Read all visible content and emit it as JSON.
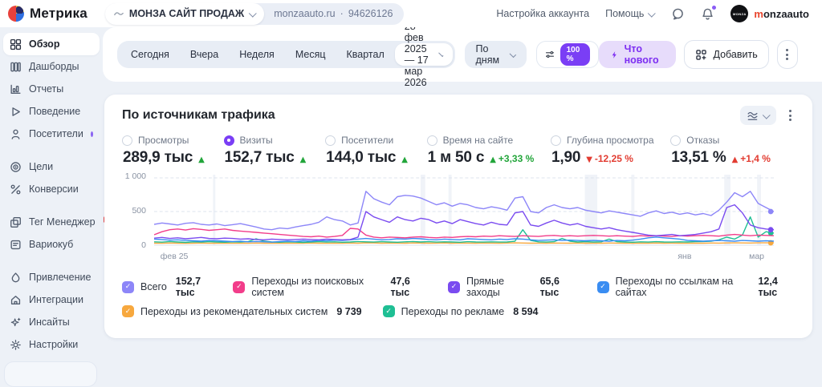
{
  "header": {
    "brand": "Метрика",
    "counter": {
      "name": "МОНЗА САЙТ ПРОДАЖ",
      "domain": "monzaauto.ru",
      "separator": "·",
      "id": "94626126"
    },
    "nav": {
      "account_settings": "Настройка аккаунта",
      "help": "Помощь"
    },
    "user": {
      "avatar_text": "MONZA",
      "name_first": "m",
      "name_rest": "onzaauto"
    }
  },
  "sidebar": {
    "groups": [
      {
        "items": [
          {
            "label": "Обзор",
            "icon": "overview-grid-icon",
            "active": true
          },
          {
            "label": "Дашборды",
            "icon": "dashboards-icon"
          },
          {
            "label": "Отчеты",
            "icon": "reports-icon"
          },
          {
            "label": "Поведение",
            "icon": "behavior-icon"
          },
          {
            "label": "Посетители",
            "icon": "visitors-icon",
            "dot": true
          }
        ]
      },
      {
        "items": [
          {
            "label": "Цели",
            "icon": "goals-icon"
          },
          {
            "label": "Конверсии",
            "icon": "conversions-icon"
          }
        ]
      },
      {
        "items": [
          {
            "label": "Тег Менеджер",
            "icon": "tag-manager-icon",
            "badge": "β"
          },
          {
            "label": "Вариокуб",
            "icon": "variocube-icon"
          }
        ]
      },
      {
        "items": [
          {
            "label": "Привлечение",
            "icon": "acquisition-icon"
          },
          {
            "label": "Интеграции",
            "icon": "integrations-icon"
          },
          {
            "label": "Инсайты",
            "icon": "insights-icon"
          },
          {
            "label": "Настройки",
            "icon": "settings-icon"
          }
        ]
      }
    ]
  },
  "toolbar": {
    "periods": [
      "Сегодня",
      "Вчера",
      "Неделя",
      "Месяц",
      "Квартал"
    ],
    "date_range": "28 фев 2025 — 17 мар 2026",
    "group_by": "По дням",
    "sample": "100 %",
    "whats_new_label": "Что нового",
    "add_label": "Добавить"
  },
  "card": {
    "title": "По источникам трафика"
  },
  "metrics": [
    {
      "label": "Просмотры",
      "value": "289,9 тыс",
      "delta": "",
      "trend": "up-good",
      "selected": false
    },
    {
      "label": "Визиты",
      "value": "152,7 тыс",
      "delta": "",
      "trend": "up-good",
      "selected": true
    },
    {
      "label": "Посетители",
      "value": "144,0 тыс",
      "delta": "",
      "trend": "up-good",
      "selected": false
    },
    {
      "label": "Время на сайте",
      "value": "1 м 50 с",
      "delta": "+3,33 %",
      "trend": "up-good",
      "selected": false
    },
    {
      "label": "Глубина просмотра",
      "value": "1,90",
      "delta": "-12,25 %",
      "trend": "down-bad",
      "selected": false
    },
    {
      "label": "Отказы",
      "value": "13,51 %",
      "delta": "+1,4 %",
      "trend": "up-bad",
      "selected": false
    }
  ],
  "legend": [
    [
      {
        "label": "Всего",
        "value": "152,7 тыс",
        "color": "#8d86f8"
      },
      {
        "label": "Переходы из поисковых систем",
        "value": "47,6 тыс",
        "color": "#f23d8a"
      },
      {
        "label": "Прямые заходы",
        "value": "65,6 тыс",
        "color": "#7a4bf0"
      },
      {
        "label": "Переходы по ссылкам на сайтах",
        "value": "12,4 тыс",
        "color": "#3a8df2"
      }
    ],
    [
      {
        "label": "Переходы из рекомендательных систем",
        "value": "9 739",
        "color": "#f7a83e"
      },
      {
        "label": "Переходы по рекламе",
        "value": "8 594",
        "color": "#1fbf94"
      }
    ]
  ],
  "chart_data": {
    "type": "line",
    "title": "По источникам трафика",
    "xlabel": "",
    "ylabel": "",
    "ylim": [
      0,
      1000
    ],
    "grid": true,
    "y_ticks": [
      "1 000",
      "500",
      "0"
    ],
    "x_ticks": [
      {
        "label": "фев 25",
        "pos": 1
      },
      {
        "label": "янв",
        "pos": 84.5
      },
      {
        "label": "мар",
        "pos": 96
      }
    ],
    "series": [
      {
        "name": "Всего",
        "color": "#8d86f8",
        "end_dot": true,
        "values": [
          310,
          330,
          315,
          300,
          325,
          335,
          310,
          300,
          315,
          290,
          305,
          320,
          295,
          270,
          240,
          230,
          255,
          245,
          270,
          290,
          310,
          340,
          420,
          380,
          360,
          300,
          330,
          800,
          690,
          640,
          600,
          720,
          740,
          730,
          700,
          650,
          600,
          630,
          580,
          620,
          600,
          560,
          540,
          570,
          550,
          520,
          700,
          720,
          500,
          480,
          560,
          600,
          560,
          540,
          560,
          520,
          500,
          480,
          510,
          490,
          470,
          450,
          430,
          480,
          510,
          470,
          490,
          460,
          480,
          450,
          470,
          440,
          520,
          640,
          780,
          720,
          800,
          620,
          560,
          500
        ]
      },
      {
        "name": "Переходы из поисковых систем",
        "color": "#f23d8a",
        "end_dot": false,
        "values": [
          155,
          200,
          230,
          240,
          225,
          245,
          235,
          220,
          230,
          240,
          220,
          210,
          200,
          190,
          180,
          170,
          160,
          150,
          140,
          130,
          125,
          135,
          120,
          130,
          145,
          250,
          240,
          150,
          120,
          110,
          120,
          115,
          110,
          120,
          125,
          115,
          110,
          120,
          115,
          125,
          130,
          125,
          135,
          130,
          140,
          135,
          130,
          140,
          135,
          130,
          140,
          145,
          135,
          140,
          135,
          140,
          145,
          140,
          135,
          140,
          135,
          130,
          140,
          135,
          140,
          135,
          130,
          140,
          135,
          140,
          145,
          140,
          135,
          150,
          160,
          150,
          140,
          150,
          145,
          140
        ]
      },
      {
        "name": "Прямые заходы",
        "color": "#7a4bf0",
        "end_dot": true,
        "values": [
          105,
          115,
          100,
          110,
          95,
          105,
          115,
          100,
          95,
          105,
          100,
          90,
          95,
          85,
          80,
          90,
          85,
          80,
          85,
          90,
          85,
          80,
          90,
          85,
          80,
          85,
          120,
          500,
          420,
          380,
          340,
          420,
          380,
          360,
          400,
          380,
          330,
          360,
          320,
          380,
          350,
          320,
          300,
          340,
          310,
          300,
          480,
          500,
          300,
          280,
          330,
          370,
          330,
          300,
          320,
          280,
          260,
          240,
          260,
          230,
          210,
          190,
          170,
          150,
          140,
          150,
          160,
          140,
          150,
          160,
          180,
          200,
          240,
          560,
          600,
          480,
          300,
          260,
          240,
          230
        ]
      },
      {
        "name": "Переходы по ссылкам на сайтах",
        "color": "#3a8df2",
        "end_dot": false,
        "values": [
          90,
          85,
          75,
          80,
          70,
          65,
          60,
          70,
          65,
          60,
          55,
          60,
          50,
          55,
          50,
          45,
          55,
          60,
          55,
          65,
          60,
          70,
          65,
          75,
          70,
          80,
          90,
          100,
          90,
          80,
          85,
          95,
          90,
          100,
          95,
          85,
          80,
          90,
          85,
          80,
          95,
          90,
          85,
          80,
          90,
          85,
          95,
          90,
          80,
          70,
          75,
          80,
          70,
          75,
          70,
          65,
          70,
          65,
          60,
          70,
          65,
          75,
          90,
          110,
          120,
          110,
          100,
          90,
          70,
          65,
          60,
          65,
          70,
          65,
          60,
          70,
          65,
          60,
          65,
          60
        ]
      },
      {
        "name": "Переходы из рекомендательных систем",
        "color": "#f7a83e",
        "end_dot": true,
        "values": [
          30,
          28,
          32,
          30,
          27,
          30,
          32,
          28,
          30,
          31,
          29,
          30,
          28,
          32,
          30,
          29,
          31,
          30,
          28,
          30,
          32,
          30,
          29,
          31,
          30,
          32,
          30,
          35,
          33,
          30,
          32,
          31,
          30,
          33,
          32,
          30,
          31,
          33,
          30,
          32,
          31,
          30,
          32,
          31,
          30,
          32,
          34,
          32,
          30,
          31,
          30,
          32,
          31,
          30,
          32,
          30,
          31,
          30,
          32,
          31,
          30,
          29,
          31,
          30,
          32,
          30,
          31,
          30,
          29,
          31,
          30,
          32,
          31,
          33,
          35,
          33,
          32,
          35,
          34,
          35
        ]
      },
      {
        "name": "Переходы по рекламе",
        "color": "#1fbf94",
        "end_dot": true,
        "values": [
          50,
          45,
          55,
          48,
          42,
          50,
          46,
          52,
          48,
          44,
          50,
          46,
          55,
          95,
          60,
          48,
          44,
          50,
          46,
          42,
          48,
          52,
          46,
          50,
          44,
          48,
          55,
          50,
          46,
          52,
          48,
          44,
          50,
          55,
          48,
          52,
          46,
          50,
          48,
          44,
          52,
          48,
          46,
          50,
          46,
          48,
          60,
          230,
          70,
          50,
          46,
          52,
          100,
          60,
          48,
          52,
          46,
          50,
          90,
          52,
          48,
          44,
          50,
          46,
          52,
          48,
          46,
          50,
          48,
          52,
          55,
          60,
          80,
          120,
          90,
          150,
          420,
          120,
          200,
          180
        ]
      }
    ]
  }
}
